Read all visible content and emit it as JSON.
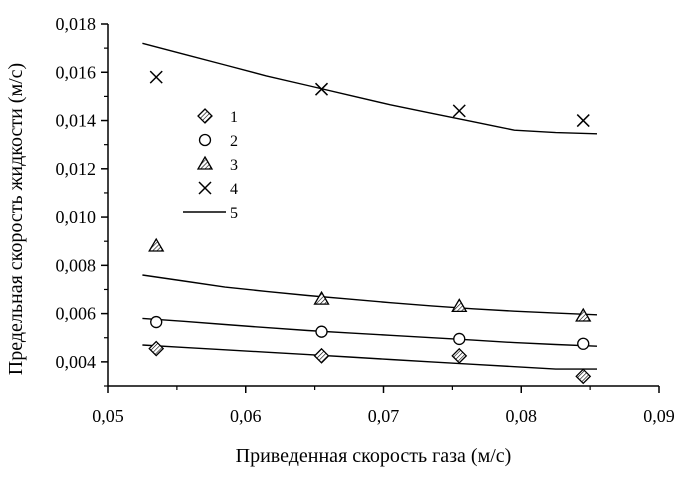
{
  "chart_data": {
    "type": "scatter",
    "xlabel": "Приведенная скорость газа (м/с)",
    "ylabel": "Предельная скорость жидкости (м/с)",
    "xlim": [
      0.05,
      0.09
    ],
    "ylim": [
      0.003,
      0.018
    ],
    "x_ticks": [
      "0,05",
      "0,06",
      "0,07",
      "0,08",
      "0,09"
    ],
    "y_ticks": [
      "0,004",
      "0,006",
      "0,008",
      "0,010",
      "0,012",
      "0,014",
      "0,016",
      "0,018"
    ],
    "x_tick_values": [
      0.05,
      0.06,
      0.07,
      0.08,
      0.09
    ],
    "y_tick_values": [
      0.004,
      0.006,
      0.008,
      0.01,
      0.012,
      0.014,
      0.016,
      0.018
    ],
    "legend_position": "upper-left",
    "series": [
      {
        "name": "1",
        "marker": "diamond-hatched",
        "x": [
          0.0535,
          0.0655,
          0.0755,
          0.0845
        ],
        "y": [
          0.00455,
          0.00425,
          0.00425,
          0.0034
        ]
      },
      {
        "name": "2",
        "marker": "circle-open",
        "x": [
          0.0535,
          0.0655,
          0.0755,
          0.0845
        ],
        "y": [
          0.00565,
          0.00525,
          0.00495,
          0.00475
        ]
      },
      {
        "name": "3",
        "marker": "triangle-hatched",
        "x": [
          0.0535,
          0.0655,
          0.0755,
          0.0845
        ],
        "y": [
          0.0088,
          0.0066,
          0.0063,
          0.0059
        ]
      },
      {
        "name": "4",
        "marker": "cross-x",
        "x": [
          0.0535,
          0.0655,
          0.0755,
          0.0845
        ],
        "y": [
          0.0158,
          0.0153,
          0.0144,
          0.014
        ]
      }
    ],
    "fit_series_name": "5",
    "fits": [
      {
        "x": [
          0.0525,
          0.0555,
          0.0585,
          0.0615,
          0.0645,
          0.0675,
          0.0705,
          0.0735,
          0.0765,
          0.0795,
          0.0825,
          0.0855
        ],
        "y": [
          0.0172,
          0.01675,
          0.0163,
          0.01585,
          0.01545,
          0.01505,
          0.01465,
          0.0143,
          0.01395,
          0.0136,
          0.0135,
          0.01345
        ]
      },
      {
        "x": [
          0.0525,
          0.0555,
          0.0585,
          0.0615,
          0.0645,
          0.0675,
          0.0705,
          0.0735,
          0.0765,
          0.0795,
          0.0825,
          0.0855
        ],
        "y": [
          0.0076,
          0.00735,
          0.0071,
          0.00692,
          0.00675,
          0.0066,
          0.00645,
          0.00632,
          0.0062,
          0.0061,
          0.00602,
          0.00595
        ]
      },
      {
        "x": [
          0.0525,
          0.0555,
          0.0585,
          0.0615,
          0.0645,
          0.0675,
          0.0705,
          0.0735,
          0.0765,
          0.0795,
          0.0825,
          0.0855
        ],
        "y": [
          0.0058,
          0.00568,
          0.00555,
          0.00542,
          0.0053,
          0.0052,
          0.0051,
          0.005,
          0.0049,
          0.0048,
          0.00472,
          0.00465
        ]
      },
      {
        "x": [
          0.0525,
          0.0555,
          0.0585,
          0.0615,
          0.0645,
          0.0675,
          0.0705,
          0.0735,
          0.0765,
          0.0795,
          0.0825,
          0.0855
        ],
        "y": [
          0.0047,
          0.0046,
          0.0045,
          0.0044,
          0.0043,
          0.0042,
          0.0041,
          0.004,
          0.0039,
          0.0038,
          0.0037,
          0.0037
        ]
      }
    ]
  }
}
